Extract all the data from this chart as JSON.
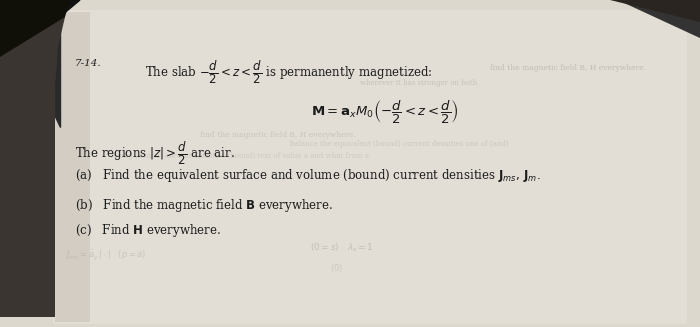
{
  "fig_width": 7.0,
  "fig_height": 3.27,
  "dpi": 100,
  "bg_dark": "#1a1a1a",
  "page_bg": "#ddd8ce",
  "page_light": "#e8e3d8",
  "text_color": "#1c1c1c",
  "faded_color": "#aaa89a",
  "problem_number": "7-14.",
  "title_line1": "The slab $-\\dfrac{d}{2}<z<\\dfrac{d}{2}$ is permanently magnetized:",
  "magnetization_eq": "$\\mathbf{M}=\\mathbf{a}_xM_0\\left(-\\dfrac{d}{2}<z<\\dfrac{d}{2}\\right)$",
  "regions_text": "The regions $|z|>\\dfrac{d}{2}$ are air.",
  "ghost1": "find the magnetic field B, H everywhere.",
  "ghost2": "wherever it has stronger on both",
  "ghost3": "balance the equivalent (bound) current densities (bound) text one of (and)",
  "ghost4": "A long (bound) current densities (bound) text of value a and what from a",
  "part_a": "(a)   Find the equivalent surface and volume (bound) current densities $\\mathbf{J}_{ms},\\,\\mathbf{J}_{m}.$",
  "part_b": "(b)   Find the magnetic field $\\mathbf{B}$ everywhere.",
  "part_c": "(c)   Find $\\mathbf{H}$ everywhere.",
  "bottom1": "$(0=s)$   $\\lambda_s=1$",
  "bottom2": "$J_{ms}=\\hat{a}_y\\,|\\cdot|$   $(p=a)$",
  "bottom3": "$(0)$"
}
